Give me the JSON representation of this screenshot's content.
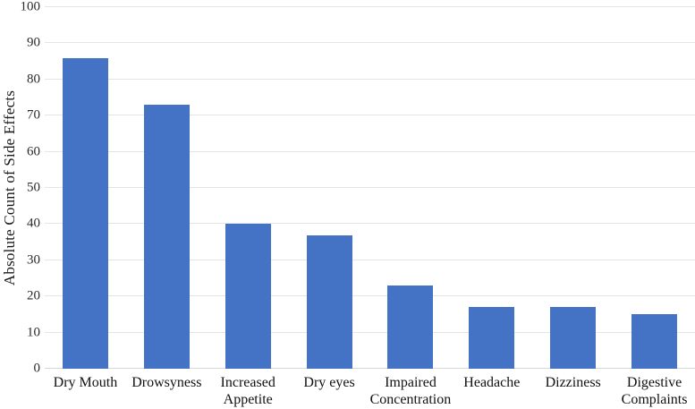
{
  "chart_data": {
    "type": "bar",
    "title": "",
    "categories": [
      "Dry Mouth",
      "Drowsyness",
      "Increased\nAppetite",
      "Dry eyes",
      "Impaired\nConcentration",
      "Headache",
      "Dizziness",
      "Digestive\nComplaints"
    ],
    "values": [
      86,
      73,
      40,
      37,
      23,
      17,
      17,
      15
    ],
    "xlabel": "",
    "ylabel": "Absolute Count of Side Effects",
    "ylim": [
      0,
      100
    ],
    "yticks": [
      0,
      10,
      20,
      30,
      40,
      50,
      60,
      70,
      80,
      90,
      100
    ],
    "grid": "horizontal",
    "legend": "none",
    "bar_color": "#4472C4",
    "gridline_color": "#E4E4E4",
    "axis_baseline_color": "#D6D6D6",
    "text_color": "#1A1A1A"
  }
}
